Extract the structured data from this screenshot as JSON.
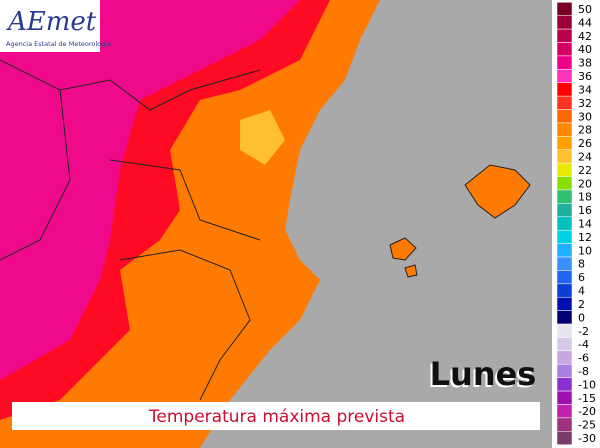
{
  "logo": {
    "name": "AEmet",
    "subtitle": "Agencia Estatal de Meteorología"
  },
  "day": "Lunes",
  "caption": "Temperatura máxima prevista",
  "legend": {
    "items": [
      {
        "label": 50,
        "color": "#7a0022"
      },
      {
        "label": 44,
        "color": "#9c0038"
      },
      {
        "label": 42,
        "color": "#b8004c"
      },
      {
        "label": 40,
        "color": "#d40064"
      },
      {
        "label": 38,
        "color": "#ee0088"
      },
      {
        "label": 36,
        "color": "#ff33bb"
      },
      {
        "label": 34,
        "color": "#ff0000"
      },
      {
        "label": 32,
        "color": "#ff3322"
      },
      {
        "label": 30,
        "color": "#ff6600"
      },
      {
        "label": 28,
        "color": "#ff8800"
      },
      {
        "label": 26,
        "color": "#ffa000"
      },
      {
        "label": 24,
        "color": "#ffc030"
      },
      {
        "label": 22,
        "color": "#e8e800"
      },
      {
        "label": 20,
        "color": "#88e000"
      },
      {
        "label": 18,
        "color": "#30c070"
      },
      {
        "label": 16,
        "color": "#20b0a0"
      },
      {
        "label": 14,
        "color": "#00c0c0"
      },
      {
        "label": 12,
        "color": "#00d0e8"
      },
      {
        "label": 10,
        "color": "#20b0ff"
      },
      {
        "label": 8,
        "color": "#3a90ff"
      },
      {
        "label": 6,
        "color": "#1f66f0"
      },
      {
        "label": 4,
        "color": "#0a40d8"
      },
      {
        "label": 2,
        "color": "#0010b0"
      },
      {
        "label": 0,
        "color": "#000070"
      },
      {
        "label": -2,
        "color": "#e8e4f0"
      },
      {
        "label": -4,
        "color": "#d8c8e8"
      },
      {
        "label": -6,
        "color": "#c8a8e0"
      },
      {
        "label": -8,
        "color": "#a880e0"
      },
      {
        "label": -10,
        "color": "#8a30d0"
      },
      {
        "label": -15,
        "color": "#a010b0"
      },
      {
        "label": -20,
        "color": "#c020b0"
      },
      {
        "label": -25,
        "color": "#a03080"
      },
      {
        "label": -30,
        "color": "#7a3a6a"
      }
    ]
  }
}
